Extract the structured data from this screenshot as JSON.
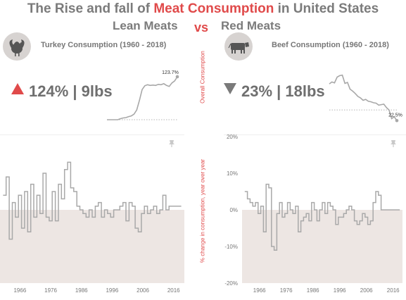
{
  "header": {
    "title_prefix": "The Rise and fall of ",
    "title_accent": "Meat Consumption",
    "title_suffix": " in United States",
    "left_heading": "Lean Meats",
    "vs": "vs",
    "right_heading": "Red Meats",
    "accent_color": "#e04a4a"
  },
  "side_labels": {
    "top": "Overall Consumption",
    "bottom": "% change in consumption, year over year"
  },
  "left": {
    "icon": "turkey-icon",
    "chart_title": "Turkey Consumption (1960 - 2018)",
    "kpi_direction": "up",
    "kpi_text": "124% | 9lbs"
  },
  "right": {
    "icon": "cow-icon",
    "chart_title": "Beef Consumption (1960 - 2018)",
    "kpi_direction": "down",
    "kpi_text": "23% | 18lbs"
  },
  "chart_data": [
    {
      "id": "turkey-overall",
      "type": "line",
      "annotation": "123.7%",
      "x": [
        1966,
        1968,
        1970,
        1972,
        1974,
        1976,
        1978,
        1980,
        1982,
        1984,
        1986,
        1988,
        1990,
        1992,
        1994,
        1996,
        1998,
        2000,
        2002,
        2004,
        2006,
        2008,
        2010,
        2012,
        2014,
        2016,
        2018
      ],
      "y": [
        0,
        0,
        0,
        0,
        0,
        3,
        5,
        6,
        9,
        11,
        16,
        28,
        56,
        87,
        98,
        101,
        99,
        100,
        99,
        102,
        101,
        104,
        99,
        96,
        106,
        112,
        124
      ]
    },
    {
      "id": "beef-overall",
      "type": "line",
      "annotation": "22.5%",
      "x": [
        1966,
        1968,
        1970,
        1972,
        1974,
        1976,
        1978,
        1980,
        1982,
        1984,
        1986,
        1988,
        1990,
        1992,
        1994,
        1996,
        1998,
        2000,
        2002,
        2004,
        2006,
        2008,
        2010,
        2012,
        2014,
        2016,
        2018
      ],
      "y": [
        54,
        58,
        56,
        68,
        71,
        72,
        55,
        57,
        43,
        39,
        34,
        28,
        25,
        20,
        22,
        18,
        17,
        15,
        14,
        10,
        11,
        12,
        5,
        0,
        -18,
        -14,
        -22
      ]
    },
    {
      "id": "turkey-yoy",
      "type": "step",
      "x_ticks": [
        1966,
        1976,
        1986,
        1996,
        2006,
        2016
      ],
      "x": [
        1961,
        1962,
        1963,
        1964,
        1965,
        1966,
        1967,
        1968,
        1969,
        1970,
        1971,
        1972,
        1973,
        1974,
        1975,
        1976,
        1977,
        1978,
        1979,
        1980,
        1981,
        1982,
        1983,
        1984,
        1985,
        1986,
        1987,
        1988,
        1989,
        1990,
        1991,
        1992,
        1993,
        1994,
        1995,
        1996,
        1997,
        1998,
        1999,
        2000,
        2001,
        2002,
        2003,
        2004,
        2005,
        2006,
        2007,
        2008,
        2009,
        2010,
        2011,
        2012,
        2013,
        2014,
        2015,
        2016,
        2017,
        2018
      ],
      "y": [
        4,
        9,
        -8,
        2,
        -2,
        4,
        -5,
        5,
        -6,
        7,
        -2,
        4,
        -1,
        10,
        -2,
        -3,
        5,
        -3,
        7,
        3,
        11,
        13,
        6,
        5,
        1,
        0,
        -1,
        -2,
        0,
        -2,
        1,
        2,
        -2,
        0,
        -1,
        -2,
        0,
        0,
        1,
        2,
        -3,
        2,
        1,
        -5,
        -6,
        -1,
        1,
        -1,
        0,
        1,
        -1,
        0,
        4,
        0,
        1,
        1,
        1,
        1
      ]
    },
    {
      "id": "beef-yoy",
      "type": "step",
      "y_ticks": [
        "20%",
        "10%",
        "0%",
        "-10%",
        "-20%"
      ],
      "x_ticks": [
        1966,
        1976,
        1986,
        1996,
        2006,
        2016
      ],
      "x": [
        1961,
        1962,
        1963,
        1964,
        1965,
        1966,
        1967,
        1968,
        1969,
        1970,
        1971,
        1972,
        1973,
        1974,
        1975,
        1976,
        1977,
        1978,
        1979,
        1980,
        1981,
        1982,
        1983,
        1984,
        1985,
        1986,
        1987,
        1988,
        1989,
        1990,
        1991,
        1992,
        1993,
        1994,
        1995,
        1996,
        1997,
        1998,
        1999,
        2000,
        2001,
        2002,
        2003,
        2004,
        2005,
        2006,
        2007,
        2008,
        2009,
        2010,
        2011,
        2012,
        2013,
        2014,
        2015,
        2016,
        2017,
        2018
      ],
      "y": [
        5,
        3,
        2,
        1,
        2,
        -1,
        1,
        -6,
        7,
        6,
        -10,
        -11,
        -1,
        2,
        -2,
        -1,
        2,
        0,
        -1,
        1,
        -6,
        -3,
        -2,
        -1,
        -3,
        2,
        0,
        -3,
        0,
        2,
        -1,
        2,
        1,
        0,
        -4,
        -2,
        -2,
        -1,
        0,
        1,
        0,
        -3,
        -4,
        -3,
        -1,
        -2,
        -4,
        -3,
        2,
        5,
        4,
        0,
        0,
        0,
        0,
        0,
        0,
        0
      ]
    }
  ]
}
